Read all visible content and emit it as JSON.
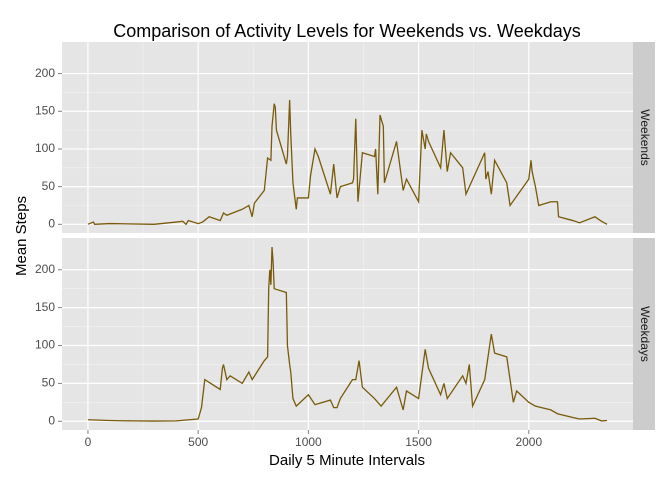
{
  "chart_data": {
    "type": "line",
    "title": "Comparison of Activity Levels for Weekends vs. Weekdays",
    "xlabel": "Daily 5 Minute Intervals",
    "ylabel": "Mean Steps",
    "xlim": [
      -117.75,
      2472.75
    ],
    "xticks": [
      0,
      500,
      1000,
      1500,
      2000
    ],
    "ylim": [
      -11.5,
      241.9
    ],
    "yticks": [
      0,
      50,
      100,
      150,
      200
    ],
    "grid": true,
    "series": [
      {
        "name": "Weekends",
        "color": "#7a5a0a",
        "x": [
          0,
          25,
          30,
          100,
          300,
          400,
          430,
          445,
          455,
          500,
          520,
          550,
          600,
          615,
          630,
          700,
          730,
          745,
          755,
          800,
          815,
          830,
          835,
          845,
          850,
          855,
          900,
          905,
          915,
          920,
          930,
          945,
          950,
          1000,
          1010,
          1030,
          1045,
          1100,
          1115,
          1130,
          1145,
          1200,
          1205,
          1215,
          1225,
          1245,
          1300,
          1305,
          1315,
          1325,
          1340,
          1345,
          1400,
          1430,
          1445,
          1500,
          1515,
          1530,
          1535,
          1545,
          1600,
          1615,
          1630,
          1645,
          1700,
          1715,
          1800,
          1805,
          1815,
          1830,
          1845,
          1900,
          1915,
          2000,
          2010,
          2015,
          2030,
          2045,
          2100,
          2130,
          2135,
          2200,
          2230,
          2300,
          2330,
          2355
        ],
        "values": [
          0.2,
          3,
          0,
          1,
          0,
          3,
          4,
          0,
          5,
          1,
          3,
          10,
          5,
          15,
          12,
          20,
          25,
          10,
          28,
          45,
          88,
          85,
          130,
          160,
          155,
          125,
          80,
          90,
          165,
          120,
          55,
          20,
          35,
          35,
          65,
          100,
          90,
          40,
          80,
          35,
          50,
          55,
          60,
          140,
          30,
          95,
          90,
          100,
          40,
          145,
          130,
          55,
          110,
          45,
          60,
          30,
          125,
          100,
          120,
          110,
          75,
          125,
          70,
          95,
          75,
          40,
          95,
          60,
          70,
          40,
          85,
          55,
          25,
          60,
          85,
          70,
          50,
          25,
          30,
          30,
          10,
          5,
          2,
          10,
          4,
          0
        ]
      },
      {
        "name": "Weekdays",
        "color": "#7a5a0a",
        "x": [
          0,
          100,
          200,
          300,
          400,
          500,
          515,
          530,
          600,
          610,
          615,
          630,
          645,
          700,
          730,
          745,
          800,
          815,
          820,
          825,
          830,
          835,
          840,
          845,
          900,
          905,
          915,
          920,
          930,
          945,
          1000,
          1030,
          1100,
          1115,
          1130,
          1145,
          1200,
          1215,
          1230,
          1245,
          1300,
          1330,
          1400,
          1430,
          1445,
          1500,
          1530,
          1545,
          1600,
          1615,
          1630,
          1700,
          1715,
          1730,
          1745,
          1800,
          1830,
          1845,
          1900,
          1930,
          1945,
          2000,
          2030,
          2100,
          2130,
          2200,
          2230,
          2300,
          2330,
          2355
        ],
        "values": [
          2,
          1,
          0.5,
          0.3,
          0.5,
          3,
          18,
          55,
          42,
          70,
          75,
          55,
          60,
          50,
          65,
          55,
          80,
          85,
          175,
          200,
          180,
          230,
          210,
          175,
          170,
          100,
          75,
          65,
          30,
          20,
          35,
          22,
          28,
          18,
          18,
          30,
          55,
          55,
          80,
          45,
          30,
          20,
          45,
          15,
          40,
          30,
          95,
          70,
          35,
          50,
          30,
          60,
          50,
          75,
          20,
          55,
          115,
          90,
          85,
          25,
          40,
          25,
          20,
          15,
          10,
          5,
          3,
          4,
          0.5,
          1
        ]
      }
    ]
  }
}
